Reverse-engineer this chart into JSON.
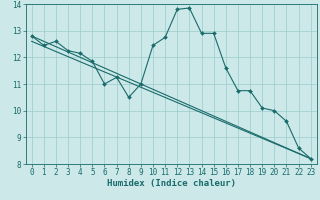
{
  "title": "",
  "xlabel": "Humidex (Indice chaleur)",
  "bg_color": "#cce8e8",
  "grid_color": "#99cccc",
  "line_color": "#1a6b6b",
  "xlim": [
    -0.5,
    23.5
  ],
  "ylim": [
    8,
    14
  ],
  "x_ticks": [
    0,
    1,
    2,
    3,
    4,
    5,
    6,
    7,
    8,
    9,
    10,
    11,
    12,
    13,
    14,
    15,
    16,
    17,
    18,
    19,
    20,
    21,
    22,
    23
  ],
  "y_ticks": [
    8,
    9,
    10,
    11,
    12,
    13,
    14
  ],
  "curve1_x": [
    0,
    1,
    2,
    3,
    4,
    5,
    6,
    7,
    8,
    9,
    10,
    11,
    12,
    13,
    14,
    15,
    16,
    17,
    18,
    19,
    20,
    21,
    22,
    23
  ],
  "curve1_y": [
    12.8,
    12.45,
    12.6,
    12.25,
    12.15,
    11.85,
    11.0,
    11.25,
    10.5,
    11.0,
    12.45,
    12.75,
    13.8,
    13.85,
    12.9,
    12.9,
    11.6,
    10.75,
    10.75,
    10.1,
    10.0,
    9.6,
    8.6,
    8.2
  ],
  "line2_x": [
    0,
    23
  ],
  "line2_y": [
    12.8,
    8.2
  ],
  "line3_x": [
    0,
    23
  ],
  "line3_y": [
    12.6,
    8.2
  ],
  "tick_fontsize": 5.5,
  "xlabel_fontsize": 6.5,
  "marker_size": 2.0
}
